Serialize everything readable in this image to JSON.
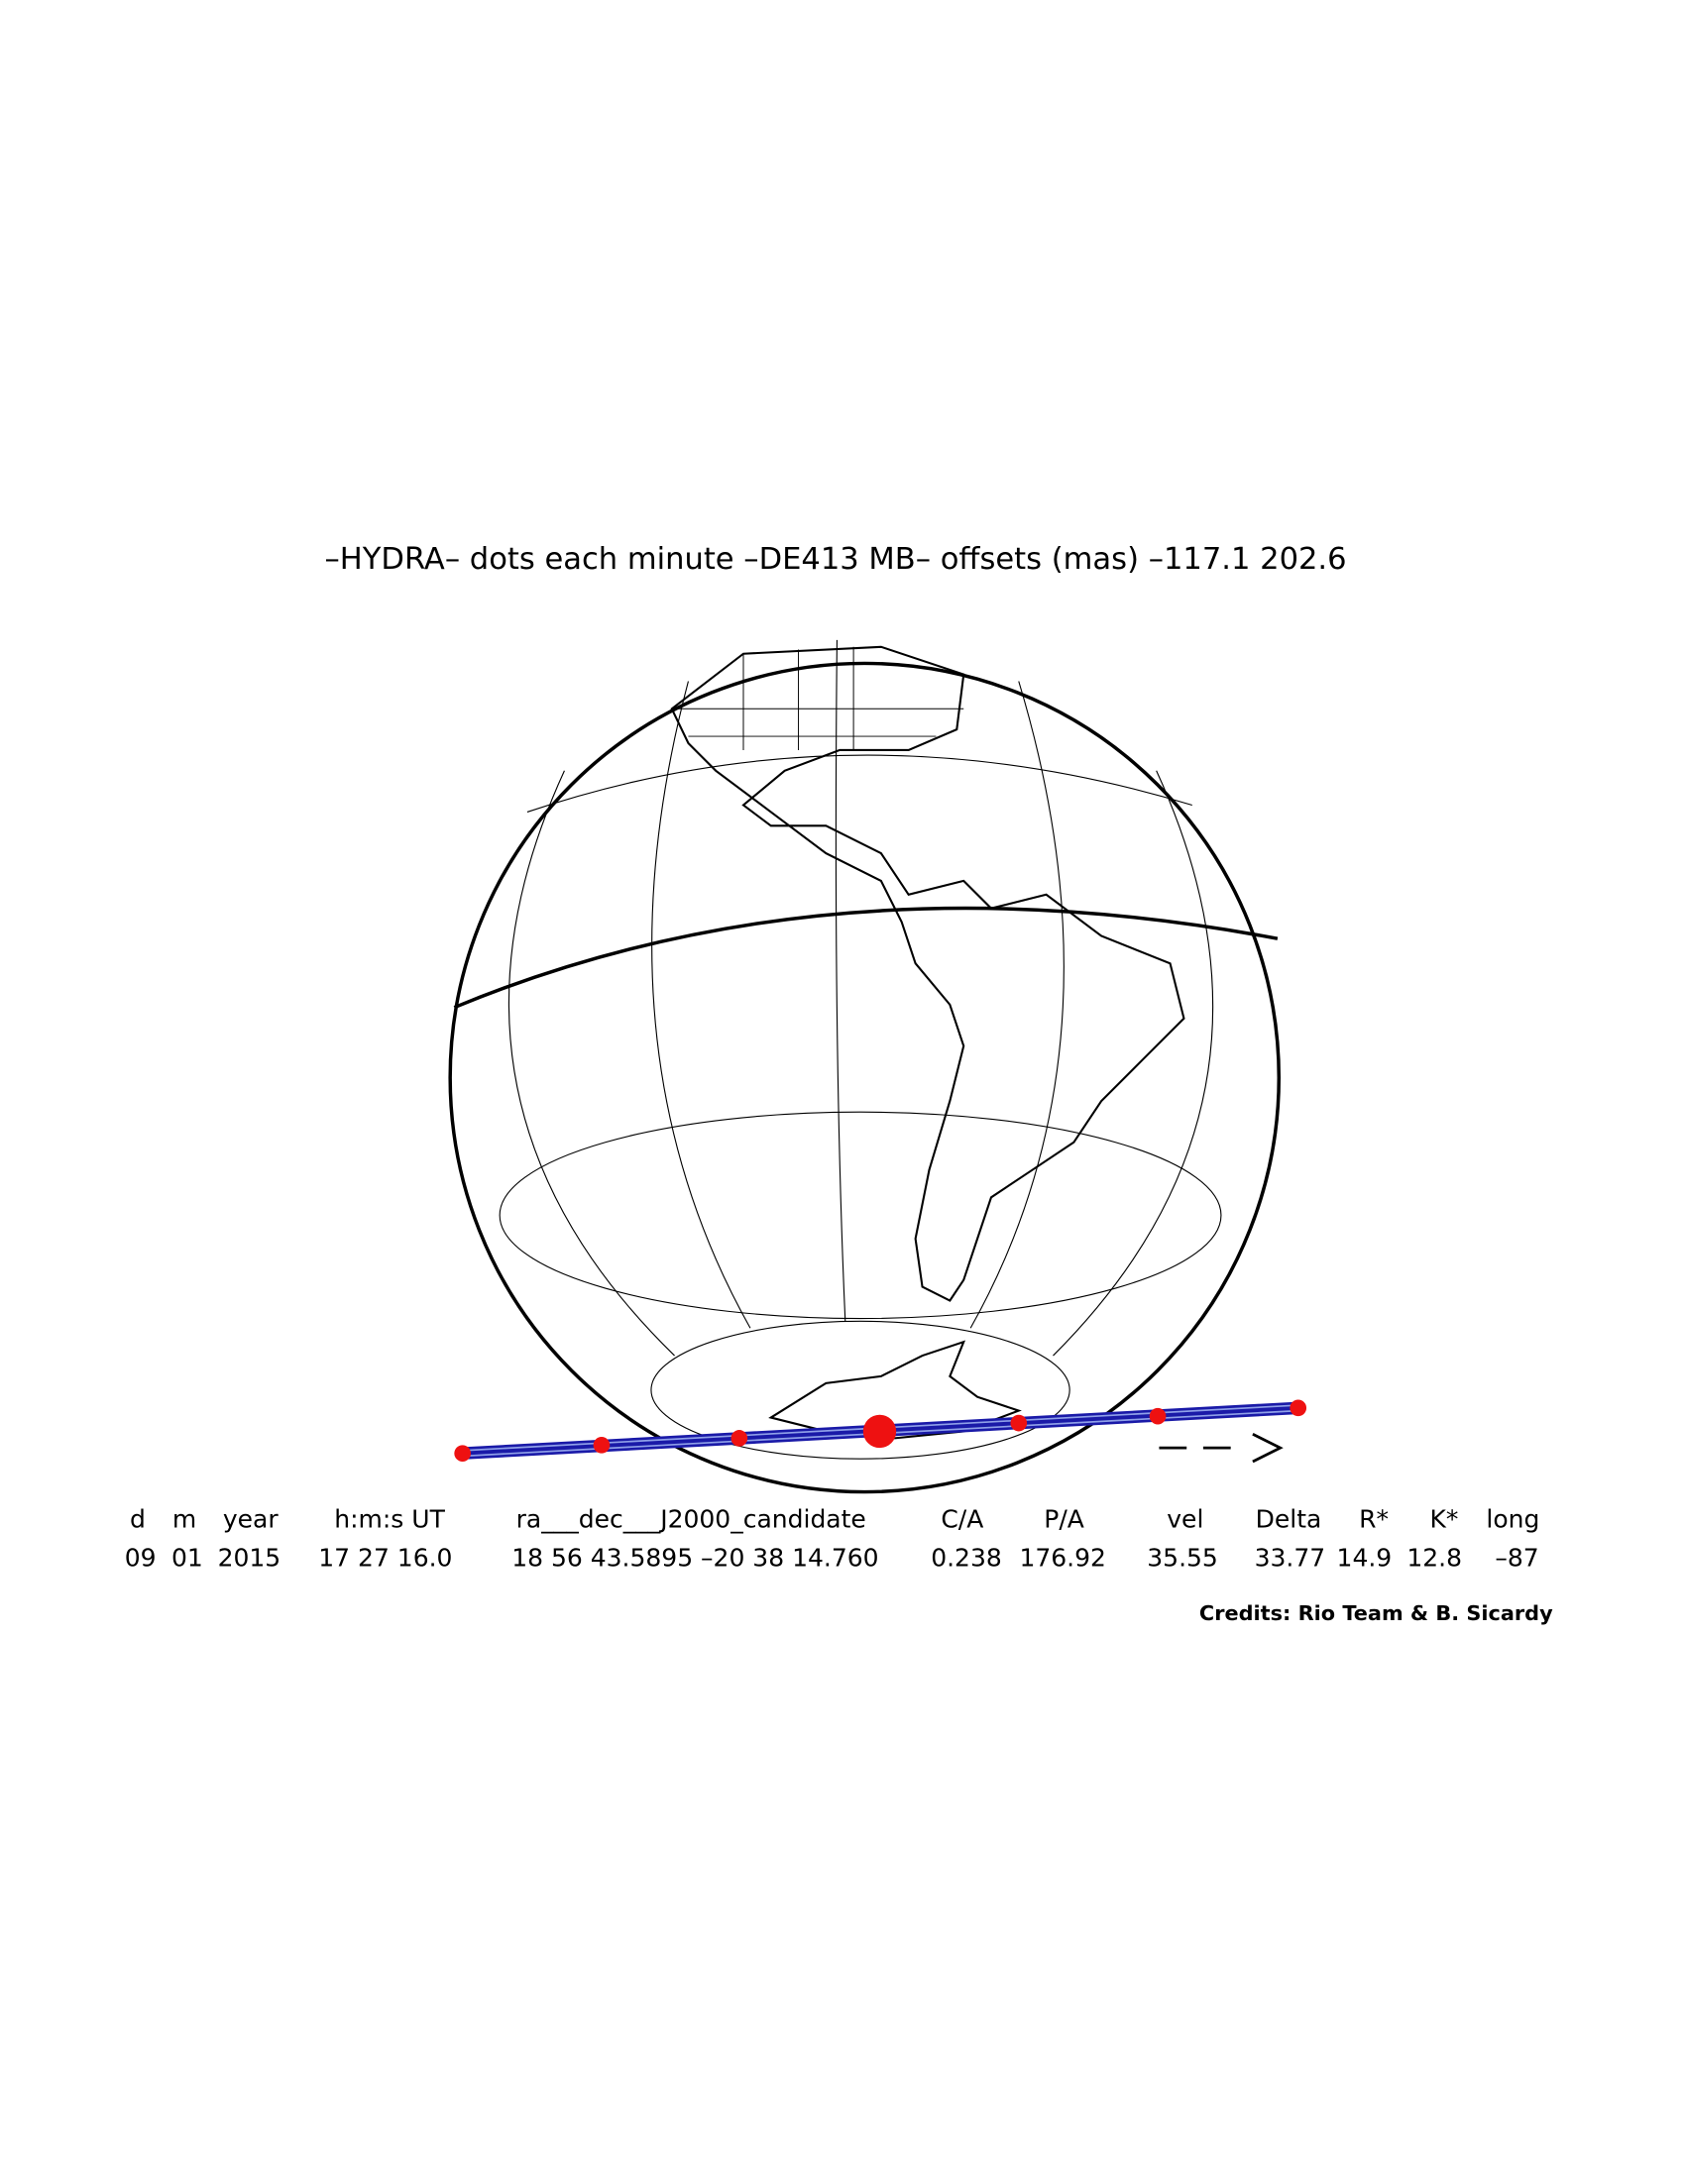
{
  "title": "–HYDRA– dots each minute –DE413 MB– offsets (mas) –117.1   202.6",
  "table": {
    "header": [
      "d",
      "m",
      "year",
      "h:m:s UT",
      "ra___dec___J2000_candidate",
      "C/A",
      "P/A",
      "vel",
      "Delta",
      "R*",
      "K*",
      "long"
    ],
    "values": [
      "09",
      "01",
      "2015",
      "17 27 16.0",
      "18 56 43.5895 –20 38 14.760",
      "0.238",
      "176.92",
      "35.55",
      "33.77",
      "14.9",
      "12.8",
      "–87"
    ]
  },
  "credits": "Credits: Rio Team & B. Sicardy"
}
